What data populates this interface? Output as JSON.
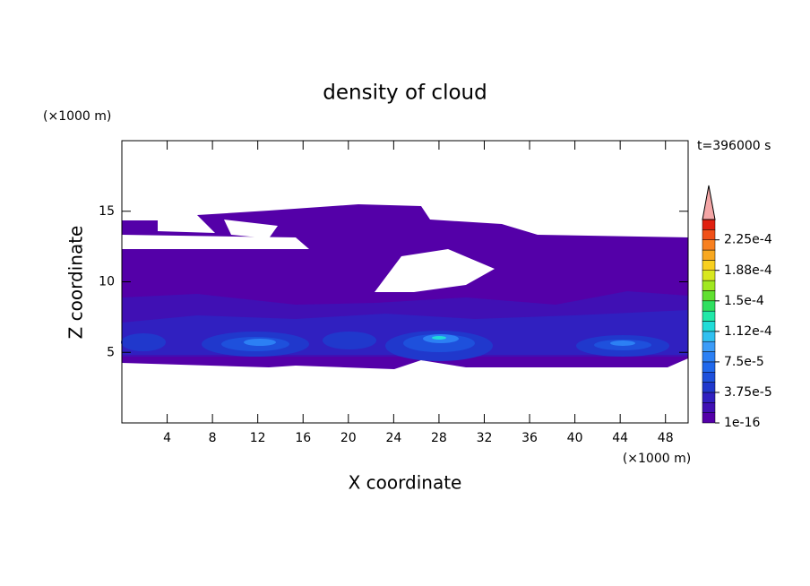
{
  "chart_data": {
    "type": "contour",
    "title": "density of cloud",
    "x_label": "X coordinate",
    "y_label": "Z coordinate",
    "x_unit": "(×1000 m)",
    "y_unit": "(×1000 m)",
    "annotation": "t=396000 s",
    "xlim": [
      0,
      50
    ],
    "ylim": [
      0,
      20
    ],
    "xticks": [
      4,
      8,
      12,
      16,
      20,
      24,
      28,
      32,
      36,
      40,
      44,
      48
    ],
    "yticks": [
      5,
      10,
      15
    ],
    "colorbar": {
      "colors": [
        "#5400a8",
        "#4010b4",
        "#3020c0",
        "#2038cc",
        "#1e50dc",
        "#2068ec",
        "#2c80f4",
        "#3c9cf8",
        "#30c0f0",
        "#20dcd8",
        "#20e8a8",
        "#30e060",
        "#60e030",
        "#a0e820",
        "#d8e820",
        "#f8d020",
        "#f8a820",
        "#f88020",
        "#f05018",
        "#e02010"
      ],
      "extend_color": "#f4a6a6",
      "ticks": [
        {
          "value": 1e-16,
          "label": "1e-16"
        },
        {
          "value": 3.75e-05,
          "label": "3.75e-5"
        },
        {
          "value": 7.5e-05,
          "label": "7.5e-5"
        },
        {
          "value": 0.0001125,
          "label": "1.12e-4"
        },
        {
          "value": 0.00015,
          "label": "1.5e-4"
        },
        {
          "value": 0.0001875,
          "label": "1.88e-4"
        },
        {
          "value": 0.000225,
          "label": "2.25e-4"
        }
      ]
    }
  }
}
